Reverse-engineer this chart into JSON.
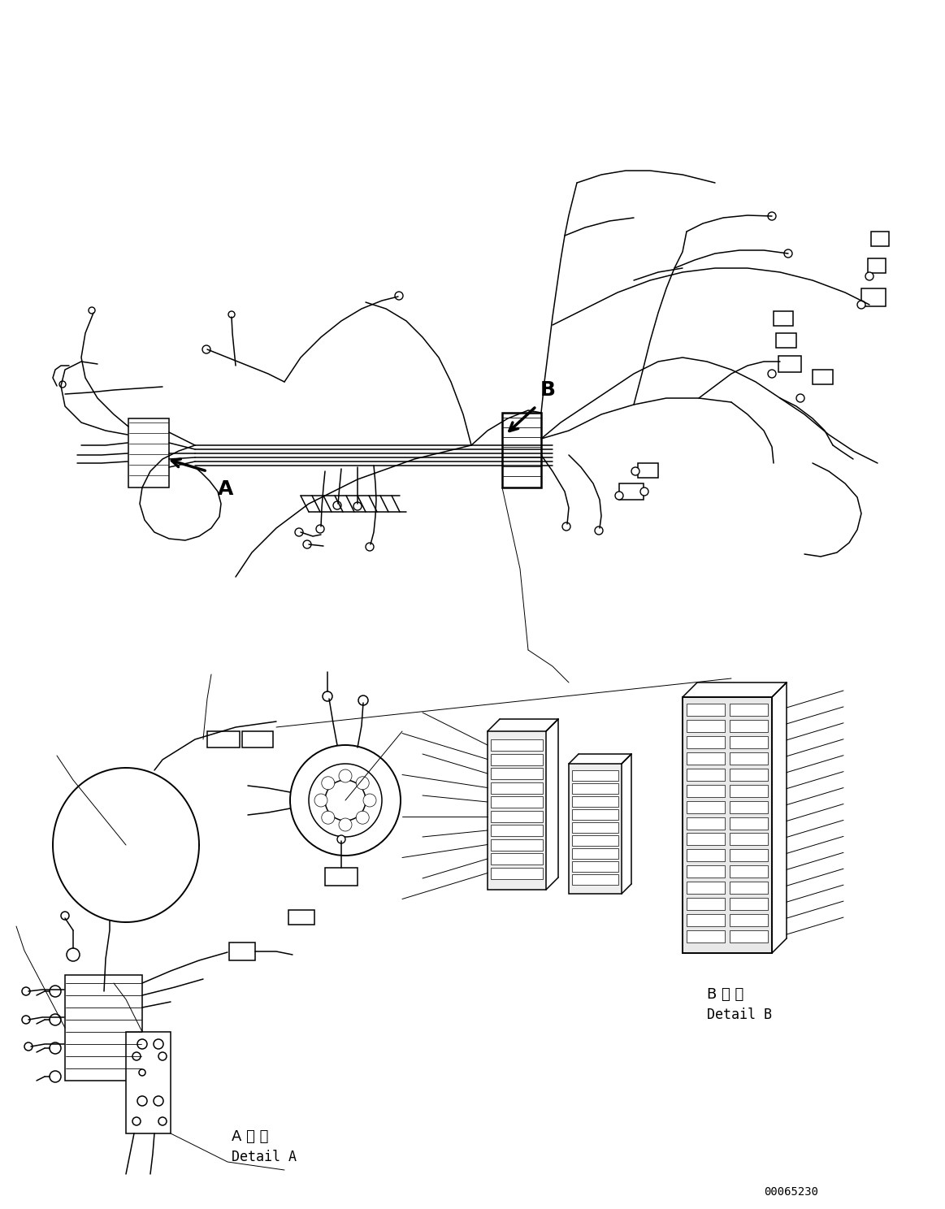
{
  "fig_width": 11.63,
  "fig_height": 14.88,
  "dpi": 100,
  "bg_color": "#ffffff",
  "line_color": "#000000",
  "lw": 1.1,
  "lw_thin": 0.7,
  "lw_thick": 1.8,
  "detail_A_jp": "A 詳 細",
  "detail_A_en": "Detail A",
  "detail_B_jp": "B 詳 細",
  "detail_B_en": "Detail B",
  "part_number": "00065230",
  "label_A": "A",
  "label_B": "B"
}
